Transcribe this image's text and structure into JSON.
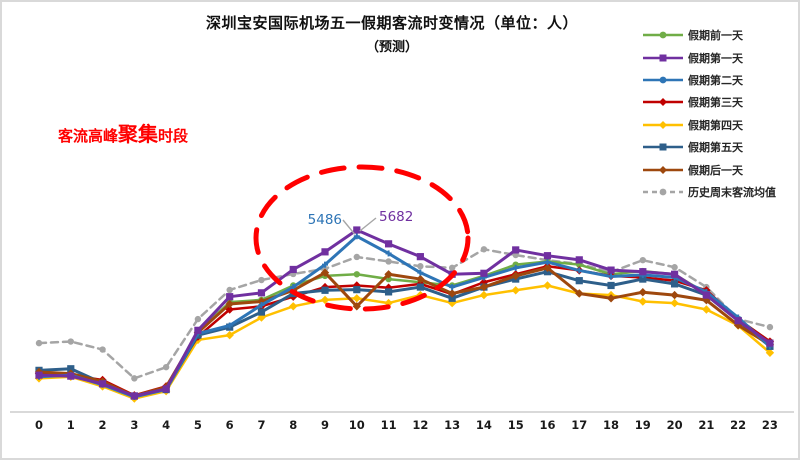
{
  "title": "深圳宝安国际机场五一假期客流时变情况（单位：人）",
  "subtitle": "（预测）",
  "annotation": {
    "part1": "客流高峰",
    "part2": "聚集",
    "part3": "时段",
    "color": "#ff0000"
  },
  "highlight_ellipse": {
    "meaning": "客流高峰聚集时段",
    "color": "#ff0000",
    "center_hour": 10
  },
  "peak_labels": [
    {
      "text": "5486",
      "series": "假期第二天",
      "hour": 10,
      "value": 5486,
      "color": "#2E75B6"
    },
    {
      "text": "5682",
      "series": "假期第一天",
      "hour": 10,
      "value": 5682,
      "color": "#7030A0"
    }
  ],
  "chart_data": {
    "type": "line",
    "x": [
      0,
      1,
      2,
      3,
      4,
      5,
      6,
      7,
      8,
      9,
      10,
      11,
      12,
      13,
      14,
      15,
      16,
      17,
      18,
      19,
      20,
      21,
      22,
      23
    ],
    "xlabel": "",
    "ylabel": "",
    "ylim": [
      0,
      6000
    ],
    "grid": false,
    "legend_position": "right",
    "series": [
      {
        "name": "假期前一天",
        "color": "#70AD47",
        "marker": "circle",
        "dashed": false,
        "width": 2.5,
        "values": [
          1150,
          1180,
          900,
          480,
          750,
          2500,
          3430,
          3500,
          3950,
          4250,
          4300,
          4150,
          4050,
          3950,
          4250,
          4600,
          4700,
          4600,
          4300,
          4400,
          4300,
          3700,
          2900,
          2200
        ]
      },
      {
        "name": "假期第一天",
        "color": "#7030A0",
        "marker": "square",
        "dashed": false,
        "width": 3,
        "values": [
          1150,
          1120,
          880,
          500,
          720,
          2550,
          3600,
          3720,
          4450,
          5000,
          5682,
          5250,
          4850,
          4300,
          4330,
          5060,
          4880,
          4750,
          4430,
          4380,
          4300,
          3650,
          2850,
          2150
        ]
      },
      {
        "name": "假期第二天",
        "color": "#2E75B6",
        "marker": "cross",
        "dashed": false,
        "width": 3,
        "values": [
          1100,
          1150,
          850,
          470,
          700,
          2450,
          2700,
          3340,
          3900,
          4600,
          5486,
          4950,
          4350,
          3900,
          4200,
          4500,
          4680,
          4420,
          4230,
          4280,
          4200,
          3750,
          2950,
          2050
        ]
      },
      {
        "name": "假期第三天",
        "color": "#C00000",
        "marker": "diamond",
        "dashed": false,
        "width": 2.5,
        "values": [
          1200,
          1150,
          1000,
          520,
          800,
          2350,
          3200,
          3300,
          3600,
          3900,
          3950,
          3880,
          4000,
          3680,
          4050,
          4300,
          4550,
          4420,
          4250,
          4200,
          4100,
          3800,
          2900,
          2200
        ]
      },
      {
        "name": "假期第四天",
        "color": "#FFC000",
        "marker": "diamond",
        "dashed": false,
        "width": 2.5,
        "values": [
          1050,
          1100,
          800,
          420,
          650,
          2250,
          2400,
          2950,
          3300,
          3500,
          3550,
          3400,
          3650,
          3400,
          3650,
          3800,
          3950,
          3700,
          3650,
          3450,
          3400,
          3200,
          2700,
          1850
        ]
      },
      {
        "name": "假期第五天",
        "color": "#2E5F8A",
        "marker": "square",
        "dashed": false,
        "width": 3,
        "values": [
          1300,
          1350,
          900,
          500,
          700,
          2400,
          2650,
          3120,
          3700,
          3800,
          3820,
          3750,
          3900,
          3550,
          3900,
          4150,
          4380,
          4100,
          3950,
          4150,
          4000,
          3650,
          2850,
          2050
        ]
      },
      {
        "name": "假期后一天",
        "color": "#9E480E",
        "marker": "diamond",
        "dashed": false,
        "width": 3,
        "values": [
          1250,
          1200,
          950,
          500,
          780,
          2480,
          3370,
          3450,
          3800,
          4350,
          3300,
          4300,
          4150,
          3700,
          3900,
          4250,
          4500,
          3700,
          3550,
          3740,
          3650,
          3490,
          2710,
          2100
        ]
      },
      {
        "name": "历史周末客流均值",
        "color": "#A5A5A5",
        "marker": "circle",
        "dashed": true,
        "width": 2.5,
        "values": [
          2150,
          2200,
          1950,
          1050,
          1400,
          2900,
          3810,
          4120,
          4310,
          4470,
          4840,
          4700,
          4550,
          4500,
          5080,
          4900,
          4740,
          4620,
          4370,
          4740,
          4520,
          3900,
          2900,
          2650
        ]
      }
    ]
  }
}
